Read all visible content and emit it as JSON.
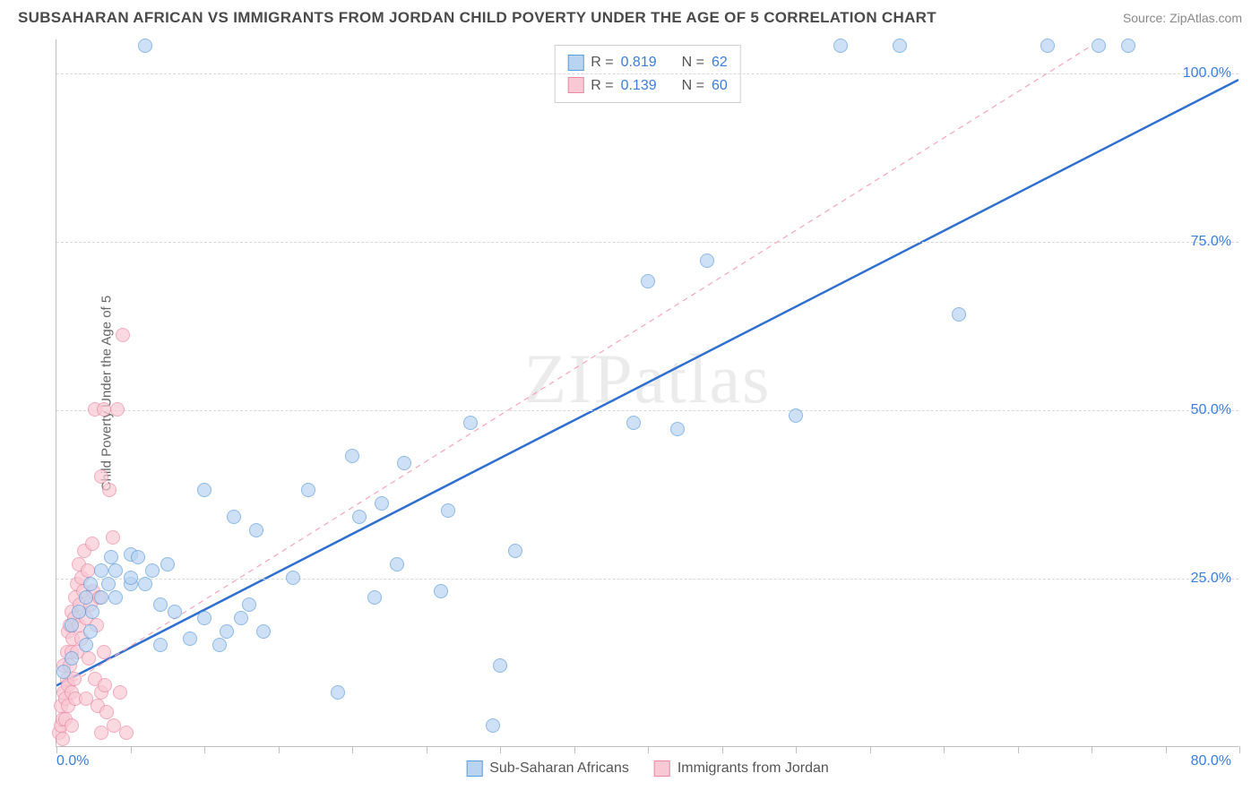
{
  "header": {
    "title": "SUBSAHARAN AFRICAN VS IMMIGRANTS FROM JORDAN CHILD POVERTY UNDER THE AGE OF 5 CORRELATION CHART",
    "source": "Source: ZipAtlas.com"
  },
  "watermark": "ZIPatlas",
  "ylabel": "Child Poverty Under the Age of 5",
  "chart": {
    "type": "scatter",
    "xlim": [
      0,
      80
    ],
    "ylim": [
      0,
      105
    ],
    "xticks_minor": [
      0,
      5,
      10,
      15,
      20,
      25,
      30,
      35,
      40,
      45,
      50,
      55,
      60,
      65,
      70,
      75,
      80
    ],
    "xtick_labels": {
      "min": "0.0%",
      "max": "80.0%"
    },
    "yticks": [
      25,
      50,
      75,
      100
    ],
    "ytick_labels": [
      "25.0%",
      "50.0%",
      "75.0%",
      "100.0%"
    ],
    "background_color": "#ffffff",
    "grid_color": "#d8d8d8",
    "axis_color": "#bfbfbf",
    "marker_radius": 8,
    "marker_stroke_width": 1.2,
    "series": [
      {
        "name": "Sub-Saharan Africans",
        "fill": "#b9d4f1",
        "stroke": "#5f9bd9",
        "fill_opacity": 0.7,
        "r": 0.819,
        "n": 62,
        "trend": {
          "x1": 0,
          "y1": 9,
          "x2": 80,
          "y2": 99,
          "stroke": "#2f6fd0",
          "width": 2.5,
          "dash": "none"
        },
        "points": [
          [
            0.5,
            11
          ],
          [
            1,
            13
          ],
          [
            1,
            18
          ],
          [
            1.5,
            20
          ],
          [
            2,
            22
          ],
          [
            2,
            15
          ],
          [
            2.3,
            24
          ],
          [
            2.3,
            17
          ],
          [
            2.4,
            20
          ],
          [
            3,
            26
          ],
          [
            3,
            22
          ],
          [
            3.5,
            24
          ],
          [
            3.7,
            28
          ],
          [
            4,
            22
          ],
          [
            4,
            26
          ],
          [
            5,
            24
          ],
          [
            5,
            25
          ],
          [
            5,
            28.5
          ],
          [
            5.5,
            28
          ],
          [
            6,
            24
          ],
          [
            6.5,
            26
          ],
          [
            7,
            15
          ],
          [
            7,
            21
          ],
          [
            7.5,
            27
          ],
          [
            8,
            20
          ],
          [
            9,
            16
          ],
          [
            10,
            19
          ],
          [
            10,
            38
          ],
          [
            11,
            15
          ],
          [
            11.5,
            17
          ],
          [
            12,
            34
          ],
          [
            12.5,
            19
          ],
          [
            13,
            21
          ],
          [
            13.5,
            32
          ],
          [
            14,
            17
          ],
          [
            16,
            25
          ],
          [
            17,
            38
          ],
          [
            19,
            8
          ],
          [
            20,
            43
          ],
          [
            20.5,
            34
          ],
          [
            21.5,
            22
          ],
          [
            22,
            36
          ],
          [
            23,
            27
          ],
          [
            23.5,
            42
          ],
          [
            26,
            23
          ],
          [
            26.5,
            35
          ],
          [
            28,
            48
          ],
          [
            29.5,
            3
          ],
          [
            30,
            12
          ],
          [
            31,
            29
          ],
          [
            39,
            48
          ],
          [
            40,
            69
          ],
          [
            42,
            47
          ],
          [
            44,
            72
          ],
          [
            50,
            49
          ],
          [
            53,
            104
          ],
          [
            57,
            104
          ],
          [
            61,
            64
          ],
          [
            67,
            104
          ],
          [
            70.5,
            104
          ],
          [
            72.5,
            104
          ],
          [
            6,
            104
          ]
        ]
      },
      {
        "name": "Immigrants from Jordan",
        "fill": "#f8c9d4",
        "stroke": "#e98aa2",
        "fill_opacity": 0.7,
        "r": 0.139,
        "n": 60,
        "trend": {
          "x1": 0,
          "y1": 8,
          "x2": 70,
          "y2": 104,
          "stroke": "#f4a6b8",
          "width": 1.2,
          "dash": "6 5"
        },
        "points": [
          [
            0.2,
            2
          ],
          [
            0.3,
            3
          ],
          [
            0.3,
            6
          ],
          [
            0.4,
            1
          ],
          [
            0.4,
            4
          ],
          [
            0.5,
            8
          ],
          [
            0.5,
            12
          ],
          [
            0.6,
            4
          ],
          [
            0.6,
            7
          ],
          [
            0.7,
            10
          ],
          [
            0.7,
            14
          ],
          [
            0.8,
            6
          ],
          [
            0.8,
            9
          ],
          [
            0.8,
            17
          ],
          [
            0.9,
            12
          ],
          [
            0.9,
            18
          ],
          [
            1,
            3
          ],
          [
            1,
            8
          ],
          [
            1,
            14
          ],
          [
            1,
            20
          ],
          [
            1.1,
            16
          ],
          [
            1.2,
            10
          ],
          [
            1.2,
            19
          ],
          [
            1.3,
            22
          ],
          [
            1.3,
            7
          ],
          [
            1.4,
            14
          ],
          [
            1.4,
            24
          ],
          [
            1.5,
            27
          ],
          [
            1.5,
            18
          ],
          [
            1.6,
            21
          ],
          [
            1.7,
            25
          ],
          [
            1.7,
            16
          ],
          [
            1.8,
            23
          ],
          [
            1.9,
            29
          ],
          [
            2,
            19
          ],
          [
            2,
            7
          ],
          [
            2.1,
            26
          ],
          [
            2.2,
            13
          ],
          [
            2.3,
            21
          ],
          [
            2.4,
            30
          ],
          [
            2.5,
            23
          ],
          [
            2.6,
            10
          ],
          [
            2.7,
            18
          ],
          [
            2.8,
            6
          ],
          [
            2.9,
            22
          ],
          [
            3,
            2
          ],
          [
            3,
            8
          ],
          [
            3.2,
            14
          ],
          [
            3.3,
            9
          ],
          [
            3.4,
            5
          ],
          [
            3.6,
            38
          ],
          [
            3.8,
            31
          ],
          [
            3,
            40
          ],
          [
            2.6,
            50
          ],
          [
            3.2,
            50
          ],
          [
            4.1,
            50
          ],
          [
            4.5,
            61
          ],
          [
            3.9,
            3
          ],
          [
            4.3,
            8
          ],
          [
            4.7,
            2
          ]
        ]
      }
    ]
  },
  "legend_top": {
    "rows": [
      {
        "swatch_fill": "#b9d4f1",
        "swatch_stroke": "#5f9bd9",
        "r_label": "R =",
        "r_val": "0.819",
        "n_label": "N =",
        "n_val": "62"
      },
      {
        "swatch_fill": "#f8c9d4",
        "swatch_stroke": "#e98aa2",
        "r_label": "R =",
        "r_val": "0.139",
        "n_label": "N =",
        "n_val": "60"
      }
    ]
  },
  "legend_bottom": {
    "items": [
      {
        "swatch_fill": "#b9d4f1",
        "swatch_stroke": "#5f9bd9",
        "label": "Sub-Saharan Africans"
      },
      {
        "swatch_fill": "#f8c9d4",
        "swatch_stroke": "#e98aa2",
        "label": "Immigrants from Jordan"
      }
    ]
  }
}
